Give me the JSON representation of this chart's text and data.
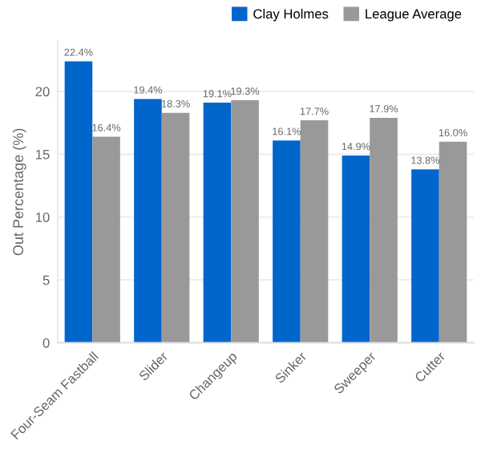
{
  "chart_data": {
    "type": "bar",
    "ylabel": "Out Percentage (%)",
    "categories": [
      "Four-Seam Fastball",
      "Slider",
      "Changeup",
      "Sinker",
      "Sweeper",
      "Cutter"
    ],
    "series": [
      {
        "name": "Clay Holmes",
        "color": "#0066cc",
        "values": [
          22.4,
          19.4,
          19.1,
          16.1,
          14.9,
          13.8
        ],
        "value_labels": [
          "22.4%",
          "19.4%",
          "19.1%",
          "16.1%",
          "14.9%",
          "13.8%"
        ]
      },
      {
        "name": "League Average",
        "color": "#999999",
        "values": [
          16.4,
          18.3,
          19.3,
          17.7,
          17.9,
          16.0
        ],
        "value_labels": [
          "16.4%",
          "18.3%",
          "19.3%",
          "17.7%",
          "17.9%",
          "16.0%"
        ]
      }
    ],
    "ylim": [
      0,
      24
    ],
    "yticks": [
      0,
      5,
      10,
      15,
      20
    ],
    "grid": "y",
    "legend": "top right"
  }
}
